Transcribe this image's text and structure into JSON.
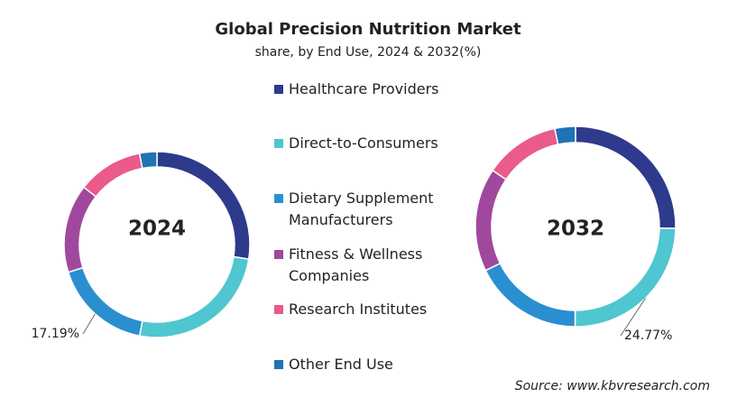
{
  "title": "Global Precision Nutrition Market",
  "subtitle": "share, by End Use, 2024 & 2032(%)",
  "source": "Source: www.kbvresearch.com",
  "chart_data": [
    {
      "type": "pie",
      "label": "2024",
      "categories": [
        "Healthcare Providers",
        "Direct-to-Consumers",
        "Dietary Supplement Manufacturers",
        "Fitness & Wellness Companies",
        "Research Institutes",
        "Other End Use"
      ],
      "colors": [
        "#2e3a8c",
        "#4fc6d0",
        "#2a8fd0",
        "#a0489e",
        "#ea5a8b",
        "#1f73b7"
      ],
      "values": [
        27.5,
        25.5,
        17.19,
        15.4,
        11.4,
        3.01
      ],
      "value_labels": [
        null,
        null,
        "17.19%",
        null,
        null,
        null
      ]
    },
    {
      "type": "pie",
      "label": "2032",
      "categories": [
        "Healthcare Providers",
        "Direct-to-Consumers",
        "Dietary Supplement Manufacturers",
        "Fitness & Wellness Companies",
        "Research Institutes",
        "Other End Use"
      ],
      "colors": [
        "#2e3a8c",
        "#4fc6d0",
        "#2a8fd0",
        "#a0489e",
        "#ea5a8b",
        "#1f73b7"
      ],
      "values": [
        25.3,
        24.77,
        17.7,
        16.7,
        12.2,
        3.33
      ],
      "value_labels": [
        null,
        "24.77%",
        null,
        null,
        null,
        null
      ]
    }
  ]
}
